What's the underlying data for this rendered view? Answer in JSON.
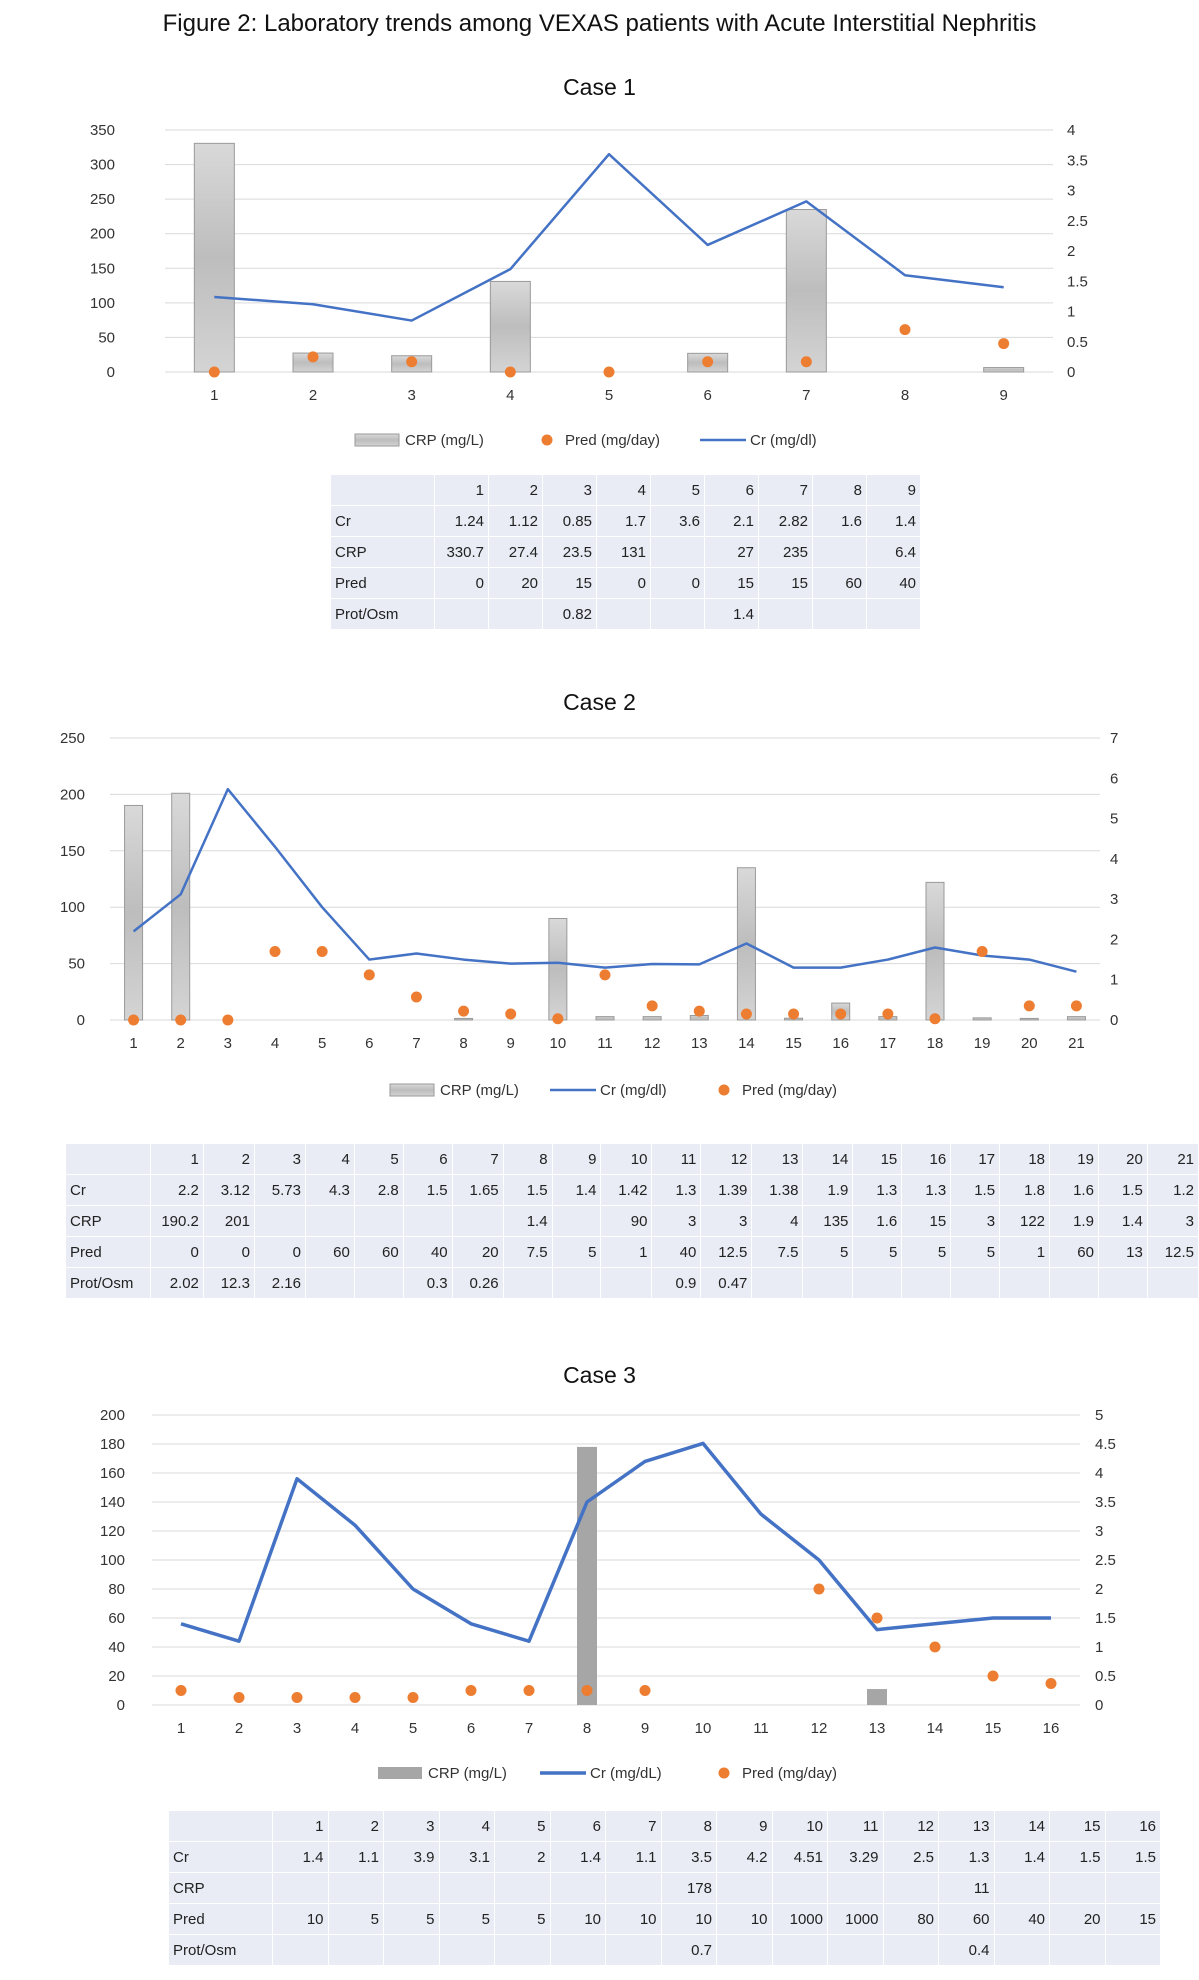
{
  "figure_title": "Figure 2: Laboratory trends among VEXAS patients with Acute Interstitial Nephritis",
  "colors": {
    "crp_bar": "#c8c8c8",
    "crp_bar_case3": "#a6a6a6",
    "cr_line": "#4472c4",
    "pred_dot": "#ed7d31",
    "grid": "#d9d9d9",
    "table_cell": "#e9ecf5"
  },
  "chart_data": [
    {
      "type": "bar",
      "title": "Case 1",
      "categories": [
        "1",
        "2",
        "3",
        "4",
        "5",
        "6",
        "7",
        "8",
        "9"
      ],
      "series": [
        {
          "name": "CRP (mg/L)",
          "type": "bar",
          "axis": "left",
          "values": [
            330.7,
            27.4,
            23.5,
            131,
            null,
            27,
            235,
            null,
            6.4
          ]
        },
        {
          "name": "Pred (mg/day)",
          "type": "scatter",
          "axis": "right",
          "values": [
            0,
            0.25,
            0.17,
            0,
            0,
            0.17,
            0.17,
            0.7,
            0.47
          ]
        },
        {
          "name": "Cr (mg/dl)",
          "type": "line",
          "axis": "right",
          "values": [
            1.24,
            1.12,
            0.85,
            1.7,
            3.6,
            2.1,
            2.82,
            1.6,
            1.4
          ]
        }
      ],
      "ylim_left": [
        0,
        350
      ],
      "yticks_left": [
        "0",
        "50",
        "100",
        "150",
        "200",
        "250",
        "300",
        "350"
      ],
      "ylim_right": [
        0,
        4
      ],
      "yticks_right": [
        "0",
        "0.5",
        "1",
        "1.5",
        "2",
        "2.5",
        "3",
        "3.5",
        "4"
      ],
      "legend": [
        "CRP (mg/L)",
        "Pred (mg/day)",
        "Cr (mg/dl)"
      ],
      "legend_position": "bottom",
      "grid": true
    },
    {
      "type": "bar",
      "title": "Case 2",
      "categories": [
        "1",
        "2",
        "3",
        "4",
        "5",
        "6",
        "7",
        "8",
        "9",
        "10",
        "11",
        "12",
        "13",
        "14",
        "15",
        "16",
        "17",
        "18",
        "19",
        "20",
        "21"
      ],
      "series": [
        {
          "name": "CRP (mg/L)",
          "type": "bar",
          "axis": "left",
          "values": [
            190.2,
            201,
            null,
            null,
            null,
            null,
            null,
            1.4,
            null,
            90,
            3,
            3,
            4,
            135,
            1.6,
            15,
            3,
            122,
            1.9,
            1.4,
            3
          ]
        },
        {
          "name": "Cr (mg/dl)",
          "type": "line",
          "axis": "right",
          "values": [
            2.2,
            3.12,
            5.73,
            4.3,
            2.8,
            1.5,
            1.65,
            1.5,
            1.4,
            1.42,
            1.3,
            1.39,
            1.38,
            1.9,
            1.3,
            1.3,
            1.5,
            1.8,
            1.6,
            1.5,
            1.2
          ]
        },
        {
          "name": "Pred (mg/day)",
          "type": "scatter",
          "axis": "right",
          "values": [
            0,
            0,
            0,
            1.7,
            1.7,
            1.12,
            0.57,
            0.22,
            0.15,
            0.03,
            1.12,
            0.35,
            0.22,
            0.15,
            0.15,
            0.15,
            0.15,
            0.03,
            1.7,
            0.35,
            0.35
          ]
        }
      ],
      "ylim_left": [
        0,
        250
      ],
      "yticks_left": [
        "0",
        "50",
        "100",
        "150",
        "200",
        "250"
      ],
      "ylim_right": [
        0,
        7
      ],
      "yticks_right": [
        "0",
        "1",
        "2",
        "3",
        "4",
        "5",
        "6",
        "7"
      ],
      "legend": [
        "CRP (mg/L)",
        "Cr (mg/dl)",
        "Pred (mg/day)"
      ],
      "legend_position": "bottom",
      "grid": true
    },
    {
      "type": "bar",
      "title": "Case 3",
      "categories": [
        "1",
        "2",
        "3",
        "4",
        "5",
        "6",
        "7",
        "8",
        "9",
        "10",
        "11",
        "12",
        "13",
        "14",
        "15",
        "16"
      ],
      "series": [
        {
          "name": "CRP (mg/L)",
          "type": "bar",
          "axis": "left",
          "values": [
            null,
            null,
            null,
            null,
            null,
            null,
            null,
            178,
            null,
            null,
            null,
            null,
            11,
            null,
            null,
            null
          ]
        },
        {
          "name": "Cr (mg/dL)",
          "type": "line",
          "axis": "right",
          "values": [
            1.4,
            1.1,
            3.9,
            3.1,
            2,
            1.4,
            1.1,
            3.5,
            4.2,
            4.51,
            3.29,
            2.5,
            1.3,
            1.4,
            1.5,
            1.5
          ]
        },
        {
          "name": "Pred (mg/day)",
          "type": "scatter",
          "axis": "right",
          "values": [
            0.25,
            0.13,
            0.13,
            0.13,
            0.13,
            0.25,
            0.25,
            0.25,
            0.25,
            null,
            null,
            2,
            1.5,
            1,
            0.5,
            0.37
          ]
        }
      ],
      "ylim_left": [
        0,
        200
      ],
      "yticks_left": [
        "0",
        "20",
        "40",
        "60",
        "80",
        "100",
        "120",
        "140",
        "160",
        "180",
        "200"
      ],
      "ylim_right": [
        0,
        5
      ],
      "yticks_right": [
        "0",
        "0.5",
        "1",
        "1.5",
        "2",
        "2.5",
        "3",
        "3.5",
        "4",
        "4.5",
        "5"
      ],
      "legend": [
        "CRP (mg/L)",
        "Cr (mg/dL)",
        "Pred (mg/day)"
      ],
      "legend_position": "bottom",
      "grid": true
    }
  ],
  "tables": [
    {
      "header": [
        "",
        "1",
        "2",
        "3",
        "4",
        "5",
        "6",
        "7",
        "8",
        "9"
      ],
      "rows": [
        [
          "Cr",
          "1.24",
          "1.12",
          "0.85",
          "1.7",
          "3.6",
          "2.1",
          "2.82",
          "1.6",
          "1.4"
        ],
        [
          "CRP",
          "330.7",
          "27.4",
          "23.5",
          "131",
          "",
          "27",
          "235",
          "",
          "6.4"
        ],
        [
          "Pred",
          "0",
          "20",
          "15",
          "0",
          "0",
          "15",
          "15",
          "60",
          "40"
        ],
        [
          "Prot/Osm",
          "",
          "",
          "0.82",
          "",
          "",
          "1.4",
          "",
          "",
          ""
        ]
      ]
    },
    {
      "header": [
        "",
        "1",
        "2",
        "3",
        "4",
        "5",
        "6",
        "7",
        "8",
        "9",
        "10",
        "11",
        "12",
        "13",
        "14",
        "15",
        "16",
        "17",
        "18",
        "19",
        "20",
        "21"
      ],
      "rows": [
        [
          "Cr",
          "2.2",
          "3.12",
          "5.73",
          "4.3",
          "2.8",
          "1.5",
          "1.65",
          "1.5",
          "1.4",
          "1.42",
          "1.3",
          "1.39",
          "1.38",
          "1.9",
          "1.3",
          "1.3",
          "1.5",
          "1.8",
          "1.6",
          "1.5",
          "1.2"
        ],
        [
          "CRP",
          "190.2",
          "201",
          "",
          "",
          "",
          "",
          "",
          "1.4",
          "",
          "90",
          "3",
          "3",
          "4",
          "135",
          "1.6",
          "15",
          "3",
          "122",
          "1.9",
          "1.4",
          "3"
        ],
        [
          "Pred",
          "0",
          "0",
          "0",
          "60",
          "60",
          "40",
          "20",
          "7.5",
          "5",
          "1",
          "40",
          "12.5",
          "7.5",
          "5",
          "5",
          "5",
          "5",
          "1",
          "60",
          "13",
          "12.5"
        ],
        [
          "Prot/Osm",
          "2.02",
          "12.3",
          "2.16",
          "",
          "",
          "0.3",
          "0.26",
          "",
          "",
          "",
          "0.9",
          "0.47",
          "",
          "",
          "",
          "",
          "",
          "",
          "",
          "",
          ""
        ]
      ]
    },
    {
      "header": [
        "",
        "1",
        "2",
        "3",
        "4",
        "5",
        "6",
        "7",
        "8",
        "9",
        "10",
        "11",
        "12",
        "13",
        "14",
        "15",
        "16"
      ],
      "rows": [
        [
          "Cr",
          "1.4",
          "1.1",
          "3.9",
          "3.1",
          "2",
          "1.4",
          "1.1",
          "3.5",
          "4.2",
          "4.51",
          "3.29",
          "2.5",
          "1.3",
          "1.4",
          "1.5",
          "1.5"
        ],
        [
          "CRP",
          "",
          "",
          "",
          "",
          "",
          "",
          "",
          "178",
          "",
          "",
          "",
          "",
          "11",
          "",
          "",
          ""
        ],
        [
          "Pred",
          "10",
          "5",
          "5",
          "5",
          "5",
          "10",
          "10",
          "10",
          "10",
          "1000",
          "1000",
          "80",
          "60",
          "40",
          "20",
          "15"
        ],
        [
          "Prot/Osm",
          "",
          "",
          "",
          "",
          "",
          "",
          "",
          "0.7",
          "",
          "",
          "",
          "",
          "0.4",
          "",
          "",
          ""
        ]
      ]
    }
  ]
}
